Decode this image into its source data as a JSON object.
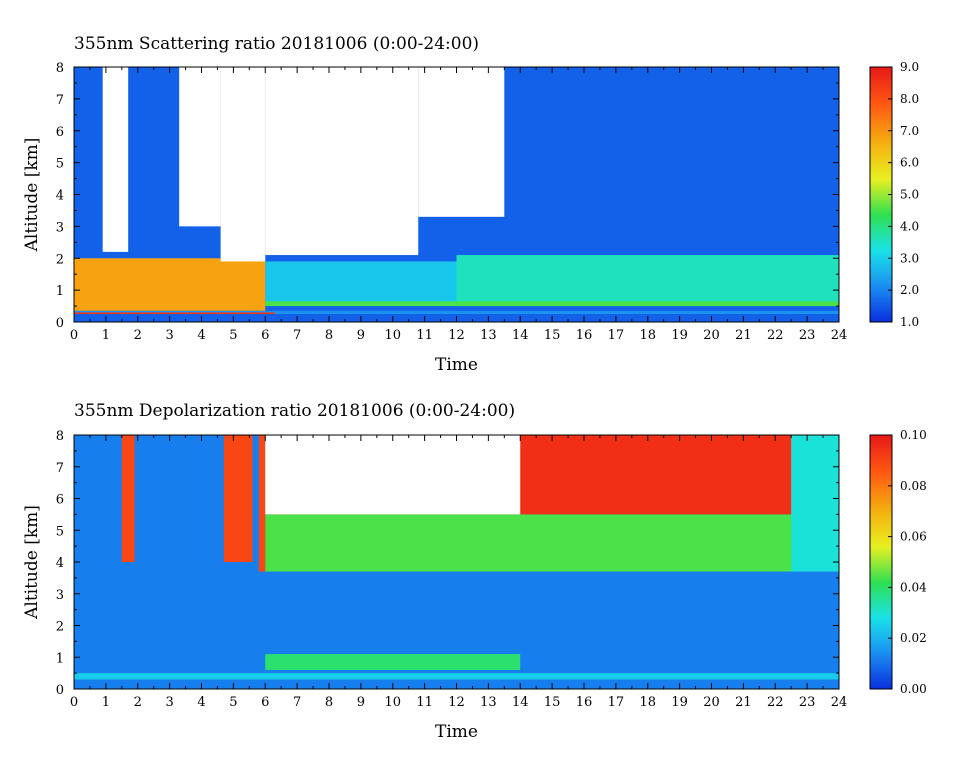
{
  "chart_data": [
    {
      "type": "heatmap",
      "title": "355nm Scattering ratio  20181006 (0:00-24:00)",
      "xlabel": "Time",
      "ylabel": "Altitude [km]",
      "xlim": [
        0,
        24
      ],
      "ylim": [
        0,
        8
      ],
      "x_ticks": [
        "0",
        "1",
        "2",
        "3",
        "4",
        "5",
        "6",
        "7",
        "8",
        "9",
        "10",
        "11",
        "12",
        "13",
        "14",
        "15",
        "16",
        "17",
        "18",
        "19",
        "20",
        "21",
        "22",
        "23",
        "24"
      ],
      "y_ticks": [
        "0",
        "1",
        "2",
        "3",
        "4",
        "5",
        "6",
        "7",
        "8"
      ],
      "colorbar": {
        "range": [
          1.0,
          9.0
        ],
        "ticks": [
          "1.0",
          "2.0",
          "3.0",
          "4.0",
          "5.0",
          "6.0",
          "7.0",
          "8.0",
          "9.0"
        ],
        "colors": [
          "#0a2fe0",
          "#1a8ef0",
          "#19e2e8",
          "#2fe050",
          "#e8f020",
          "#f5b010",
          "#ff5a12",
          "#e81818"
        ]
      },
      "regions": [
        {
          "x": [
            0,
            24
          ],
          "y": [
            0,
            8
          ],
          "value": 1.6
        },
        {
          "x": [
            6,
            24
          ],
          "y": [
            0.5,
            1.9
          ],
          "value": 2.9
        },
        {
          "x": [
            12,
            24
          ],
          "y": [
            0.5,
            2.1
          ],
          "value": 3.6
        },
        {
          "x": [
            6,
            24
          ],
          "y": [
            0.5,
            0.65
          ],
          "value": 4.6
        },
        {
          "x": [
            0,
            6
          ],
          "y": [
            0.35,
            2.0
          ],
          "value": 6.9
        },
        {
          "x": [
            0,
            24
          ],
          "y": [
            0.25,
            0.35
          ],
          "value": 2.2
        },
        {
          "x": [
            0,
            6.3
          ],
          "y": [
            0.25,
            0.3
          ],
          "value": 8.5
        },
        {
          "x": [
            0.9,
            1.7
          ],
          "y": [
            2.2,
            8
          ],
          "value": null
        },
        {
          "x": [
            3.3,
            4.6
          ],
          "y": [
            3.0,
            8
          ],
          "value": null
        },
        {
          "x": [
            4.6,
            6.0
          ],
          "y": [
            1.9,
            8
          ],
          "value": null
        },
        {
          "x": [
            6.0,
            10.8
          ],
          "y": [
            2.1,
            8
          ],
          "value": null
        },
        {
          "x": [
            10.8,
            13.5
          ],
          "y": [
            3.3,
            8
          ],
          "value": null
        }
      ]
    },
    {
      "type": "heatmap",
      "title": "355nm Depolarization ratio  20181006 (0:00-24:00)",
      "xlabel": "Time",
      "ylabel": "Altitude [km]",
      "xlim": [
        0,
        24
      ],
      "ylim": [
        0,
        8
      ],
      "x_ticks": [
        "0",
        "1",
        "2",
        "3",
        "4",
        "5",
        "6",
        "7",
        "8",
        "9",
        "10",
        "11",
        "12",
        "13",
        "14",
        "15",
        "16",
        "17",
        "18",
        "19",
        "20",
        "21",
        "22",
        "23",
        "24"
      ],
      "y_ticks": [
        "0",
        "1",
        "2",
        "3",
        "4",
        "5",
        "6",
        "7",
        "8"
      ],
      "colorbar": {
        "range": [
          0.0,
          0.1
        ],
        "ticks": [
          "0.00",
          "0.02",
          "0.04",
          "0.06",
          "0.08",
          "0.10"
        ],
        "colors": [
          "#0a2fe0",
          "#1a8ef0",
          "#19e2e8",
          "#2fe050",
          "#e8f020",
          "#f5b010",
          "#ff5a12",
          "#e81818"
        ]
      },
      "regions": [
        {
          "x": [
            0,
            24
          ],
          "y": [
            0,
            8
          ],
          "value": 0.012
        },
        {
          "x": [
            6,
            24
          ],
          "y": [
            3.7,
            5.5
          ],
          "value": 0.045
        },
        {
          "x": [
            6,
            24
          ],
          "y": [
            5.5,
            8
          ],
          "value": 0.095
        },
        {
          "x": [
            22.5,
            24
          ],
          "y": [
            3.7,
            8
          ],
          "value": 0.03
        },
        {
          "x": [
            6,
            14
          ],
          "y": [
            0.6,
            1.1
          ],
          "value": 0.04
        },
        {
          "x": [
            0,
            24
          ],
          "y": [
            0.3,
            0.5
          ],
          "value": 0.025
        },
        {
          "x": [
            1.5,
            1.9
          ],
          "y": [
            4.0,
            8
          ],
          "value": 0.09
        },
        {
          "x": [
            4.7,
            5.6
          ],
          "y": [
            4.0,
            8
          ],
          "value": 0.09
        },
        {
          "x": [
            5.8,
            6.0
          ],
          "y": [
            3.7,
            8
          ],
          "value": 0.09
        },
        {
          "x": [
            6.0,
            14.0
          ],
          "y": [
            5.5,
            8
          ],
          "value": null
        }
      ]
    }
  ]
}
